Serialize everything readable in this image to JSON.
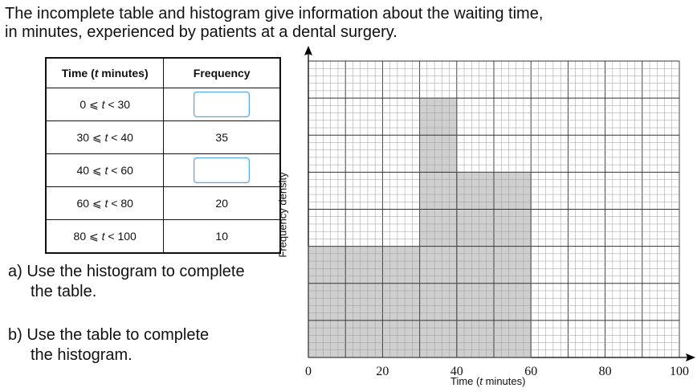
{
  "intro": {
    "line1": "The incomplete table and histogram give information about the waiting time,",
    "line2": "in minutes, experienced by patients at a dental surgery."
  },
  "table": {
    "headers": [
      "Time (t minutes)",
      "Frequency"
    ],
    "rows": [
      {
        "interval": "0 ⩽ t < 30",
        "frequency": ""
      },
      {
        "interval": "30 ⩽ t < 40",
        "frequency": "35"
      },
      {
        "interval": "40 ⩽ t < 60",
        "frequency": ""
      },
      {
        "interval": "60 ⩽ t < 80",
        "frequency": "20"
      },
      {
        "interval": "80 ⩽ t < 100",
        "frequency": "10"
      }
    ]
  },
  "questions": {
    "a_line1": "a) Use the histogram to complete",
    "a_line2": "the table.",
    "b_line1": "b) Use the table to complete",
    "b_line2": "the histogram."
  },
  "chart_data": {
    "type": "bar",
    "xlabel": "Time (t minutes)",
    "ylabel": "Frequency density",
    "xlim": [
      0,
      100
    ],
    "x_ticks": [
      0,
      20,
      40,
      60,
      80,
      100
    ],
    "grid": true,
    "bars": [
      {
        "from": 0,
        "to": 30,
        "height_large_squares": 3
      },
      {
        "from": 30,
        "to": 40,
        "height_large_squares": 7
      },
      {
        "from": 40,
        "to": 60,
        "height_large_squares": 5
      }
    ],
    "y_large_squares": 8,
    "minor_per_major": 5
  },
  "colors": {
    "bar_fill": "#cfcfcf",
    "grid_minor": "#9a9a9a",
    "grid_major": "#333333",
    "input_border": "#5aa7e0"
  }
}
